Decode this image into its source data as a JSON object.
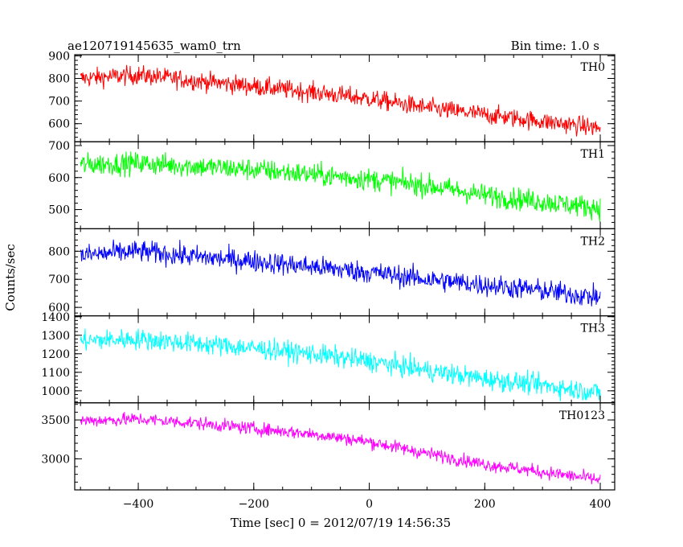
{
  "header": {
    "title": "ae120719145635_wam0_trn",
    "bin_time": "Bin time: 1.0 s"
  },
  "chart_data": {
    "type": "line",
    "xlabel": "Time [sec] 0 = 2012/07/19 14:56:35",
    "ylabel": "Counts/sec",
    "xlim": [
      -510,
      425
    ],
    "x_range": [
      -500,
      400
    ],
    "x_ticks": [
      -400,
      -200,
      0,
      200,
      400
    ],
    "x_tick_labels": [
      "−400",
      "−200",
      "0",
      "200",
      "400"
    ],
    "panels": [
      {
        "name": "TH0",
        "color": "#ff0000",
        "ylim": [
          520,
          905
        ],
        "y_ticks": [
          600,
          700,
          800,
          900
        ],
        "y_tick_labels": [
          "600",
          "700",
          "800",
          "900"
        ],
        "trend": [
          [
            -500,
            800
          ],
          [
            -400,
            815
          ],
          [
            -300,
            790
          ],
          [
            -200,
            765
          ],
          [
            -100,
            740
          ],
          [
            0,
            710
          ],
          [
            100,
            670
          ],
          [
            200,
            640
          ],
          [
            300,
            610
          ],
          [
            400,
            580
          ]
        ],
        "noise": 30
      },
      {
        "name": "TH1",
        "color": "#00ff00",
        "ylim": [
          440,
          712
        ],
        "y_ticks": [
          500,
          600,
          700
        ],
        "y_tick_labels": [
          "500",
          "600",
          "700"
        ],
        "trend": [
          [
            -500,
            640
          ],
          [
            -400,
            645
          ],
          [
            -300,
            635
          ],
          [
            -200,
            625
          ],
          [
            -100,
            610
          ],
          [
            0,
            595
          ],
          [
            100,
            575
          ],
          [
            200,
            545
          ],
          [
            300,
            525
          ],
          [
            400,
            505
          ]
        ],
        "noise": 25
      },
      {
        "name": "TH2",
        "color": "#0000ff",
        "ylim": [
          570,
          880
        ],
        "y_ticks": [
          600,
          700,
          800
        ],
        "y_tick_labels": [
          "600",
          "700",
          "800"
        ],
        "trend": [
          [
            -500,
            785
          ],
          [
            -400,
            800
          ],
          [
            -300,
            780
          ],
          [
            -200,
            765
          ],
          [
            -100,
            745
          ],
          [
            0,
            725
          ],
          [
            100,
            700
          ],
          [
            200,
            680
          ],
          [
            300,
            660
          ],
          [
            400,
            635
          ]
        ],
        "noise": 28
      },
      {
        "name": "TH3",
        "color": "#00ffff",
        "ylim": [
          935,
          1405
        ],
        "y_ticks": [
          1000,
          1100,
          1200,
          1300,
          1400
        ],
        "y_tick_labels": [
          "1000",
          "1100",
          "1200",
          "1300",
          "1400"
        ],
        "trend": [
          [
            -500,
            1270
          ],
          [
            -400,
            1280
          ],
          [
            -300,
            1255
          ],
          [
            -200,
            1230
          ],
          [
            -100,
            1200
          ],
          [
            0,
            1160
          ],
          [
            100,
            1110
          ],
          [
            200,
            1065
          ],
          [
            300,
            1030
          ],
          [
            400,
            990
          ]
        ],
        "noise": 40
      },
      {
        "name": "TH0123",
        "color": "#ff00ff",
        "ylim": [
          2600,
          3720
        ],
        "y_ticks": [
          3000,
          3500
        ],
        "y_tick_labels": [
          "3000",
          "3500"
        ],
        "trend": [
          [
            -500,
            3490
          ],
          [
            -400,
            3510
          ],
          [
            -300,
            3460
          ],
          [
            -200,
            3390
          ],
          [
            -100,
            3320
          ],
          [
            0,
            3220
          ],
          [
            100,
            3070
          ],
          [
            200,
            2930
          ],
          [
            300,
            2830
          ],
          [
            400,
            2730
          ]
        ],
        "noise": 60
      }
    ]
  }
}
